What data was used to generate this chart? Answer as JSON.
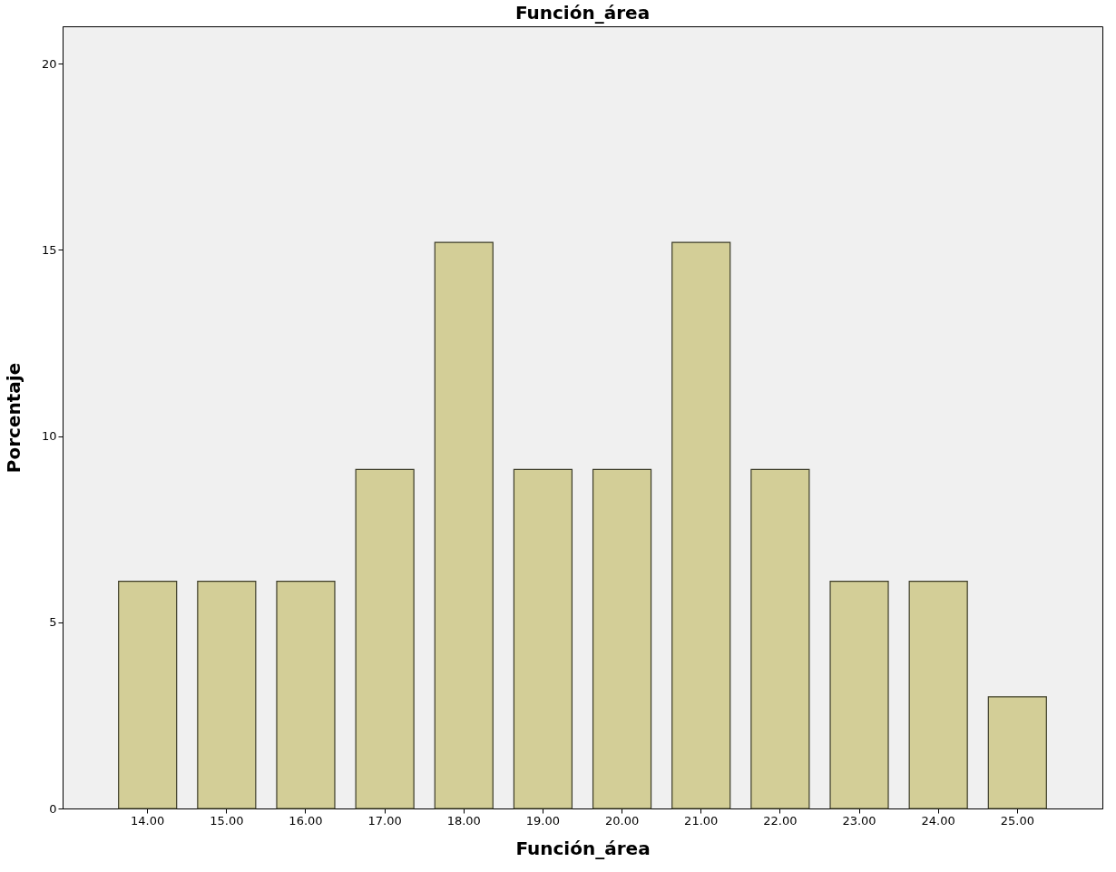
{
  "chart_data": {
    "type": "bar",
    "title": "Función_área",
    "xlabel": "Función_área",
    "ylabel": "Porcentaje",
    "categories": [
      "14.00",
      "15.00",
      "16.00",
      "17.00",
      "18.00",
      "19.00",
      "20.00",
      "21.00",
      "22.00",
      "23.00",
      "24.00",
      "25.00"
    ],
    "values": [
      6.1,
      6.1,
      6.1,
      9.1,
      15.2,
      9.1,
      9.1,
      15.2,
      9.1,
      6.1,
      6.1,
      3.0
    ],
    "color": "#d3ce97",
    "ylim": [
      0,
      21
    ],
    "yticks": [
      0,
      5,
      10,
      15,
      20
    ],
    "grid": false
  }
}
